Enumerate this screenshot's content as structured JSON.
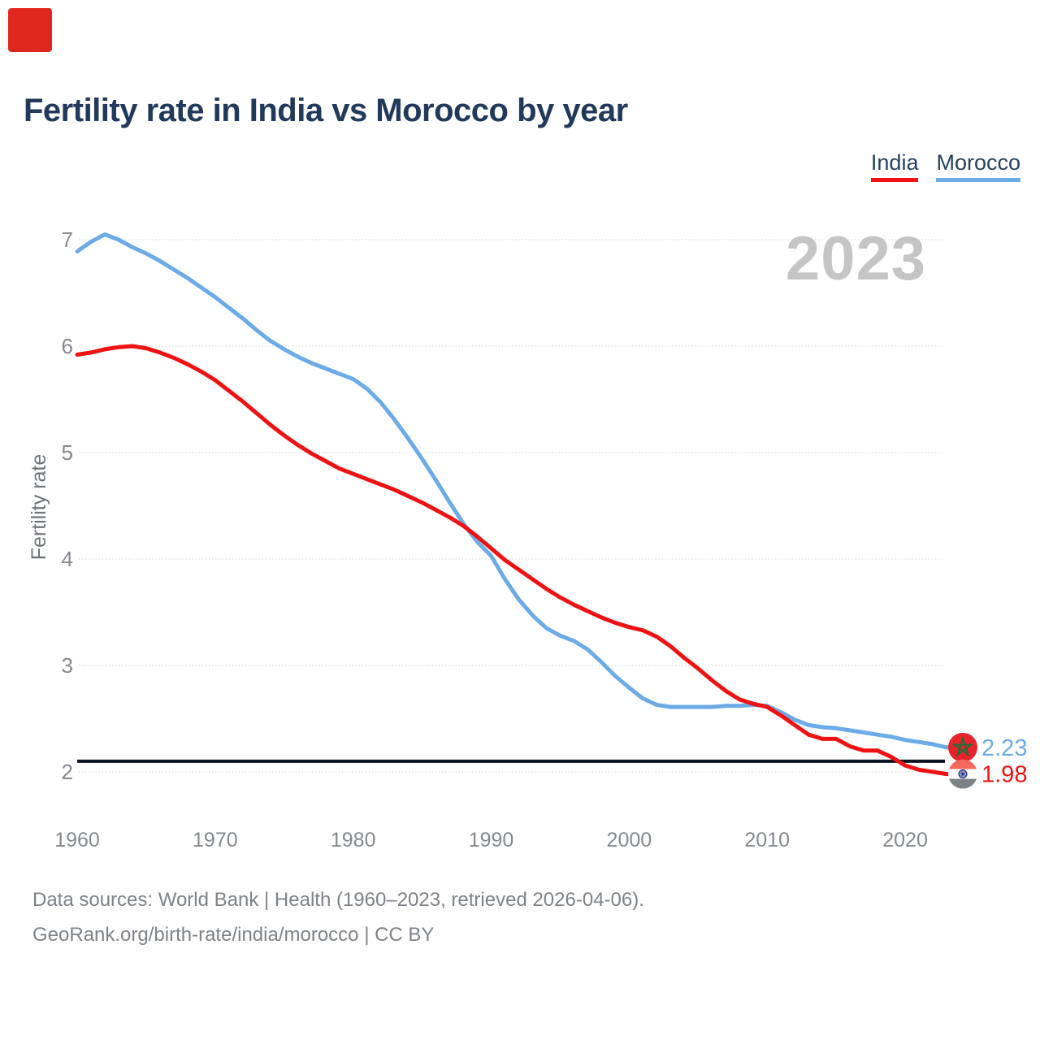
{
  "branding": {
    "logo_color": "#e0271f"
  },
  "header": {
    "title": "Fertility rate in India vs Morocco by year"
  },
  "legend": {
    "items": [
      {
        "label": "India",
        "color": "#ee1212"
      },
      {
        "label": "Morocco",
        "color": "#6babe8"
      }
    ]
  },
  "icons": {
    "morocco-flag-icon": {
      "field": "#e8232b",
      "star": "#256b35"
    },
    "india-flag-icon": {
      "top": "#f4695c",
      "middle": "#ffffff",
      "bottom": "#7d8084",
      "chakra": "#2a3b8f"
    }
  },
  "footer": {
    "line1": "Data sources: World Bank | Health (1960–2023, retrieved 2026-04-06).",
    "line2": "GeoRank.org/birth-rate/india/morocco | CC BY"
  },
  "chart_data": {
    "type": "line",
    "title": "Fertility rate in India vs Morocco by year",
    "xlabel": "",
    "ylabel": "Fertility rate",
    "watermark": "2023",
    "grid": true,
    "legend_position": "top-right",
    "xlim": [
      1960,
      2023
    ],
    "ylim": [
      2,
      7
    ],
    "xticks": [
      1960,
      1970,
      1980,
      1990,
      2000,
      2010,
      2020
    ],
    "yticks": [
      2,
      3,
      4,
      5,
      6,
      7
    ],
    "reference_line": {
      "value": 2.1,
      "color": "#0c1322"
    },
    "x": [
      1960,
      1961,
      1962,
      1963,
      1964,
      1965,
      1966,
      1967,
      1968,
      1969,
      1970,
      1971,
      1972,
      1973,
      1974,
      1975,
      1976,
      1977,
      1978,
      1979,
      1980,
      1981,
      1982,
      1983,
      1984,
      1985,
      1986,
      1987,
      1988,
      1989,
      1990,
      1991,
      1992,
      1993,
      1994,
      1995,
      1996,
      1997,
      1998,
      1999,
      2000,
      2001,
      2002,
      2003,
      2004,
      2005,
      2006,
      2007,
      2008,
      2009,
      2010,
      2011,
      2012,
      2013,
      2014,
      2015,
      2016,
      2017,
      2018,
      2019,
      2020,
      2021,
      2022,
      2023
    ],
    "series": [
      {
        "name": "India",
        "color": "#ee1212",
        "end_label": "1.98",
        "values": [
          5.92,
          5.94,
          5.97,
          5.99,
          6.0,
          5.98,
          5.94,
          5.89,
          5.83,
          5.76,
          5.68,
          5.58,
          5.48,
          5.37,
          5.26,
          5.16,
          5.07,
          4.99,
          4.92,
          4.85,
          4.8,
          4.75,
          4.7,
          4.65,
          4.59,
          4.53,
          4.46,
          4.39,
          4.31,
          4.21,
          4.1,
          3.99,
          3.9,
          3.81,
          3.72,
          3.64,
          3.57,
          3.51,
          3.45,
          3.4,
          3.36,
          3.33,
          3.27,
          3.18,
          3.07,
          2.97,
          2.86,
          2.76,
          2.68,
          2.64,
          2.61,
          2.53,
          2.44,
          2.35,
          2.31,
          2.31,
          2.24,
          2.2,
          2.2,
          2.14,
          2.06,
          2.02,
          2.0,
          1.98
        ]
      },
      {
        "name": "Morocco",
        "color": "#6babe8",
        "end_label": "2.23",
        "values": [
          6.89,
          6.98,
          7.05,
          7.0,
          6.93,
          6.87,
          6.8,
          6.72,
          6.64,
          6.55,
          6.46,
          6.36,
          6.26,
          6.15,
          6.05,
          5.97,
          5.9,
          5.84,
          5.79,
          5.74,
          5.69,
          5.6,
          5.47,
          5.31,
          5.13,
          4.94,
          4.74,
          4.53,
          4.33,
          4.16,
          4.03,
          3.81,
          3.62,
          3.47,
          3.35,
          3.28,
          3.23,
          3.15,
          3.03,
          2.9,
          2.79,
          2.69,
          2.63,
          2.61,
          2.61,
          2.61,
          2.61,
          2.62,
          2.62,
          2.63,
          2.62,
          2.56,
          2.49,
          2.44,
          2.42,
          2.41,
          2.39,
          2.37,
          2.35,
          2.33,
          2.3,
          2.28,
          2.26,
          2.23
        ]
      }
    ]
  }
}
